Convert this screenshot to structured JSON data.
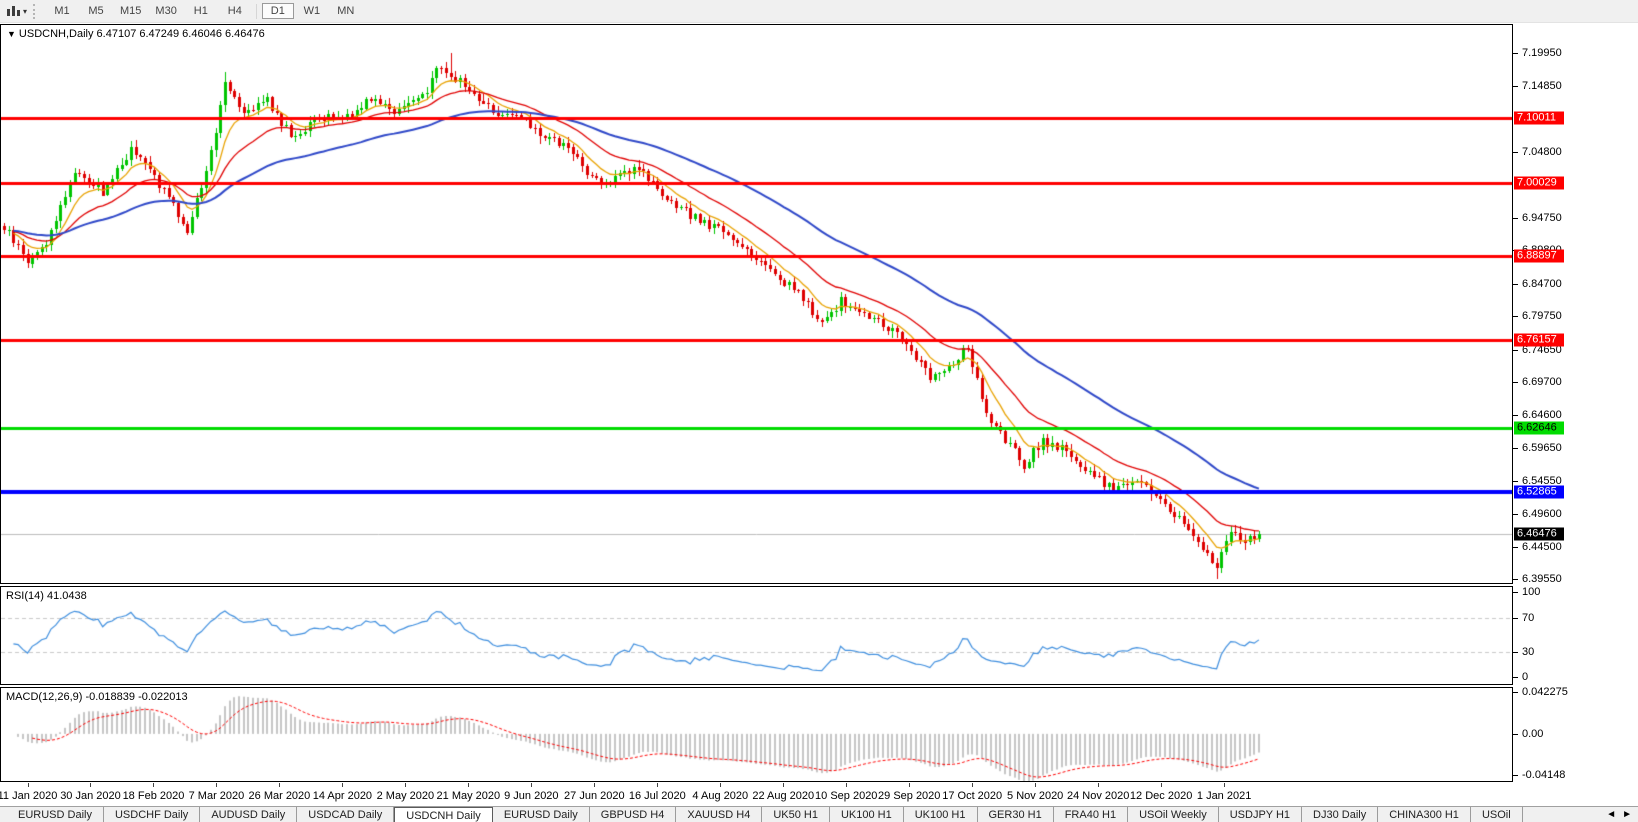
{
  "toolbar": {
    "chart_type_icon": "bar-chart-icon",
    "dropdown_caret": "▾",
    "timeframes": [
      "M1",
      "M5",
      "M15",
      "M30",
      "H1",
      "H4",
      "D1",
      "W1",
      "MN"
    ],
    "active_timeframe": "D1",
    "separator_before": "D1"
  },
  "chart_header": {
    "collapse_icon": "▼",
    "symbol_period": "USDCNH,Daily",
    "quotes": "6.47107 6.47249 6.46046 6.46476"
  },
  "tabs": {
    "items": [
      "EURUSD Daily",
      "USDCHF Daily",
      "AUDUSD Daily",
      "USDCAD Daily",
      "USDCNH Daily",
      "EURUSD Daily",
      "GBPUSD H4",
      "XAUUSD H4",
      "UK50 H1",
      "UK100 H1",
      "UK100 H1",
      "GER30 H1",
      "FRA40 H1",
      "USOil Weekly",
      "USDJPY H1",
      "DJ30 Daily",
      "CHINA300 H1",
      "USOil"
    ],
    "active_index": 4,
    "scroll_left_icon": "◄",
    "scroll_right_icon": "►"
  },
  "chart_data": {
    "type": "candlestick",
    "symbol": "USDCNH",
    "timeframe": "Daily",
    "ohlc_display": {
      "open": "6.47107",
      "high": "6.47249",
      "low": "6.46046",
      "close": "6.46476"
    },
    "candle_up_color": "#00C400",
    "candle_down_color": "#DE0000",
    "y_axis": {
      "min": 6.3955,
      "max": 7.1995,
      "ticks": [
        {
          "label": "7.19950",
          "price": 7.1995
        },
        {
          "label": "7.14850",
          "price": 7.1485
        },
        {
          "label": "7.04800",
          "price": 7.048
        },
        {
          "label": "6.94750",
          "price": 6.9475
        },
        {
          "label": "6.89800",
          "price": 6.898
        },
        {
          "label": "6.84700",
          "price": 6.847
        },
        {
          "label": "6.79750",
          "price": 6.7975
        },
        {
          "label": "6.74650",
          "price": 6.7465
        },
        {
          "label": "6.69700",
          "price": 6.697
        },
        {
          "label": "6.64600",
          "price": 6.646
        },
        {
          "label": "6.59650",
          "price": 6.5965
        },
        {
          "label": "6.54550",
          "price": 6.5455
        },
        {
          "label": "6.49600",
          "price": 6.496
        },
        {
          "label": "6.44500",
          "price": 6.445
        },
        {
          "label": "6.39550",
          "price": 6.3955
        }
      ]
    },
    "x_axis": {
      "candle_count": 268,
      "labels": [
        {
          "text": "11 Jan 2020",
          "i": 5
        },
        {
          "text": "30 Jan 2020",
          "i": 18.4
        },
        {
          "text": "18 Feb 2020",
          "i": 31.8
        },
        {
          "text": "7 Mar 2020",
          "i": 45.2
        },
        {
          "text": "26 Mar 2020",
          "i": 58.6
        },
        {
          "text": "14 Apr 2020",
          "i": 72
        },
        {
          "text": "2 May 2020",
          "i": 85.4
        },
        {
          "text": "21 May 2020",
          "i": 98.8
        },
        {
          "text": "9 Jun 2020",
          "i": 112.2
        },
        {
          "text": "27 Jun 2020",
          "i": 125.6
        },
        {
          "text": "16 Jul 2020",
          "i": 139
        },
        {
          "text": "4 Aug 2020",
          "i": 152.4
        },
        {
          "text": "22 Aug 2020",
          "i": 165.8
        },
        {
          "text": "10 Sep 2020",
          "i": 179.2
        },
        {
          "text": "29 Sep 2020",
          "i": 192.6
        },
        {
          "text": "17 Oct 2020",
          "i": 206
        },
        {
          "text": "5 Nov 2020",
          "i": 219.4
        },
        {
          "text": "24 Nov 2020",
          "i": 232.8
        },
        {
          "text": "12 Dec 2020",
          "i": 246.2
        },
        {
          "text": "1 Jan 2021",
          "i": 259.6
        }
      ]
    },
    "price_path": [
      [
        0,
        6.932
      ],
      [
        5,
        6.882
      ],
      [
        9,
        6.91
      ],
      [
        15,
        7.02
      ],
      [
        21,
        6.988
      ],
      [
        27,
        7.052
      ],
      [
        32,
        7.012
      ],
      [
        39,
        6.928
      ],
      [
        44,
        7.046
      ],
      [
        47,
        7.158
      ],
      [
        51,
        7.112
      ],
      [
        56,
        7.128
      ],
      [
        61,
        7.072
      ],
      [
        67,
        7.098
      ],
      [
        74,
        7.106
      ],
      [
        78,
        7.134
      ],
      [
        83,
        7.112
      ],
      [
        89,
        7.13
      ],
      [
        92,
        7.176
      ],
      [
        95,
        7.168
      ],
      [
        99,
        7.142
      ],
      [
        104,
        7.112
      ],
      [
        110,
        7.098
      ],
      [
        115,
        7.072
      ],
      [
        121,
        7.05
      ],
      [
        124,
        7.012
      ],
      [
        129,
        7.002
      ],
      [
        135,
        7.028
      ],
      [
        140,
        6.976
      ],
      [
        146,
        6.952
      ],
      [
        152,
        6.93
      ],
      [
        158,
        6.9
      ],
      [
        164,
        6.862
      ],
      [
        169,
        6.832
      ],
      [
        174,
        6.786
      ],
      [
        178,
        6.82
      ],
      [
        183,
        6.8
      ],
      [
        189,
        6.776
      ],
      [
        193,
        6.746
      ],
      [
        197,
        6.706
      ],
      [
        201,
        6.72
      ],
      [
        205,
        6.75
      ],
      [
        209,
        6.642
      ],
      [
        212,
        6.616
      ],
      [
        217,
        6.572
      ],
      [
        221,
        6.606
      ],
      [
        226,
        6.592
      ],
      [
        231,
        6.556
      ],
      [
        236,
        6.532
      ],
      [
        240,
        6.55
      ],
      [
        245,
        6.522
      ],
      [
        250,
        6.49
      ],
      [
        255,
        6.442
      ],
      [
        258,
        6.412
      ],
      [
        261,
        6.472
      ],
      [
        264,
        6.452
      ],
      [
        267,
        6.46476
      ]
    ],
    "extremes": [
      {
        "i": 47,
        "high": 7.17
      },
      {
        "i": 95,
        "high": 7.1995
      },
      {
        "i": 258,
        "low": 6.3955
      }
    ],
    "hlines": [
      {
        "label": "7.10011",
        "price": 7.10011,
        "color": "#FF0000",
        "text_color": "#FFFFFF",
        "width": 3
      },
      {
        "label": "7.00029",
        "price": 7.00029,
        "color": "#FF0000",
        "text_color": "#FFFFFF",
        "width": 3
      },
      {
        "label": "6.88897",
        "price": 6.88897,
        "color": "#FF0000",
        "text_color": "#FFFFFF",
        "width": 3
      },
      {
        "label": "6.76157",
        "price": 6.76157,
        "color": "#FF0000",
        "text_color": "#FFFFFF",
        "width": 3
      },
      {
        "label": "6.62646",
        "price": 6.62646,
        "color": "#00DC00",
        "text_color": "#000000",
        "width": 3
      },
      {
        "label": "6.52865",
        "price": 6.52865,
        "color": "#0000FF",
        "text_color": "#FFFFFF",
        "width": 4
      }
    ],
    "current_price": {
      "label": "6.46476",
      "price": 6.46476,
      "line_color": "#BBBBBB",
      "box_color": "#000000",
      "text_color": "#FFFFFF"
    },
    "moving_averages": [
      {
        "name": "fast",
        "type": "ema",
        "period": 8,
        "color": "#E8A200",
        "width": 1.3
      },
      {
        "name": "medium",
        "type": "ema",
        "period": 21,
        "color": "#E00000",
        "width": 1.3
      },
      {
        "name": "slow",
        "type": "ema",
        "period": 55,
        "color": "#2F48C8",
        "width": 2
      }
    ],
    "rsi": {
      "label": "RSI(14) 41.0438",
      "period": 14,
      "value": 41.0438,
      "levels": [
        70,
        30
      ],
      "ticks": [
        {
          "label": "100",
          "value": 100
        },
        {
          "label": "70",
          "value": 70
        },
        {
          "label": "30",
          "value": 30
        },
        {
          "label": "0",
          "value": 0
        }
      ],
      "line_color": "#3E8EDE",
      "level_color": "#C8C8C8"
    },
    "macd": {
      "label": "MACD(12,26,9) -0.018839 -0.022013",
      "fast": 12,
      "slow": 26,
      "signal_period": 9,
      "values": [
        -0.018839,
        -0.022013
      ],
      "ticks": [
        {
          "label": "0.042275",
          "value": 0.042275
        },
        {
          "label": "0.00",
          "value": 0
        },
        {
          "label": "-0.04148",
          "value": -0.04148
        }
      ],
      "hist_color": "#C6C6C6",
      "signal_color": "#FF0000"
    }
  }
}
